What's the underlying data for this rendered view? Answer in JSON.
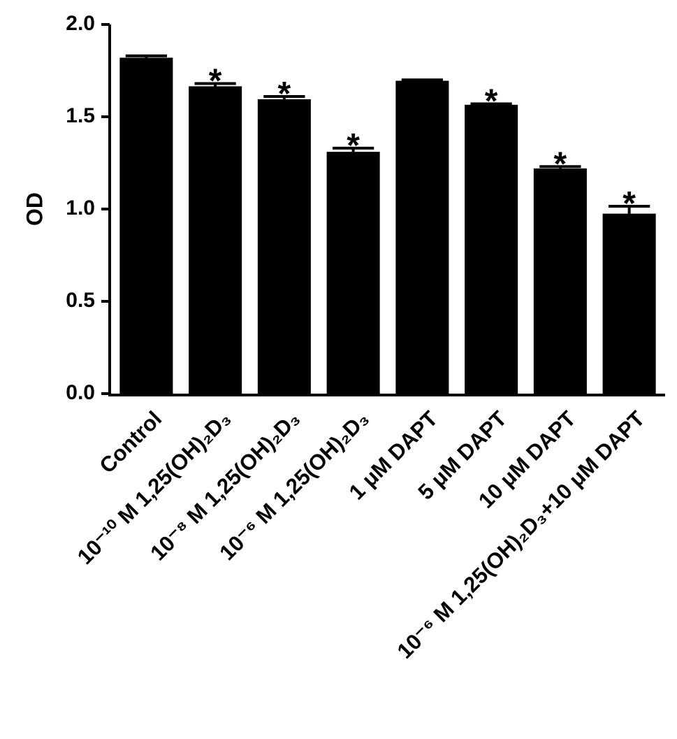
{
  "chart_data": {
    "type": "bar",
    "y_label": "OD",
    "categories": [
      "Control",
      "10⁻¹⁰ M 1,25(OH)₂D₃",
      "10⁻⁸ M 1,25(OH)₂D₃",
      "10⁻⁶ M 1,25(OH)₂D₃",
      "1 μM DAPT",
      "5 μM DAPT",
      "10 μM DAPT",
      "10⁻⁶ M 1,25(OH)₂D₃+10 μM DAPT"
    ],
    "values": [
      1.82,
      1.665,
      1.595,
      1.31,
      1.695,
      1.565,
      1.22,
      0.975
    ],
    "errors": [
      0.01,
      0.015,
      0.015,
      0.02,
      0.005,
      0.005,
      0.01,
      0.04
    ],
    "annotations": [
      null,
      "*",
      "*",
      "*",
      null,
      "*",
      "*",
      "*"
    ],
    "color": "#000000",
    "ylim": [
      0,
      2.0
    ],
    "yticks": [
      {
        "value": 0,
        "label": "0.0"
      },
      {
        "value": 0.5,
        "label": "0.5"
      },
      {
        "value": 1,
        "label": "1.0"
      },
      {
        "value": 1.5,
        "label": "1.5"
      },
      {
        "value": 2,
        "label": "2.0"
      }
    ],
    "grid": false
  }
}
